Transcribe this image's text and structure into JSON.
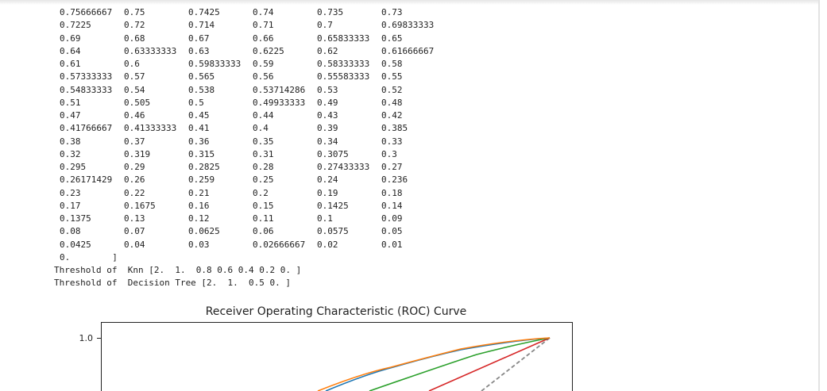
{
  "output": {
    "rows": [
      [
        "0.75666667",
        "0.75",
        "0.7425",
        "0.74",
        "0.735",
        "0.73"
      ],
      [
        "0.7225",
        "0.72",
        "0.714",
        "0.71",
        "0.7",
        "0.69833333"
      ],
      [
        "0.69",
        "0.68",
        "0.67",
        "0.66",
        "0.65833333",
        "0.65"
      ],
      [
        "0.64",
        "0.63333333",
        "0.63",
        "0.6225",
        "0.62",
        "0.61666667"
      ],
      [
        "0.61",
        "0.6",
        "0.59833333",
        "0.59",
        "0.58333333",
        "0.58"
      ],
      [
        "0.57333333",
        "0.57",
        "0.565",
        "0.56",
        "0.55583333",
        "0.55"
      ],
      [
        "0.54833333",
        "0.54",
        "0.538",
        "0.53714286",
        "0.53",
        "0.52"
      ],
      [
        "0.51",
        "0.505",
        "0.5",
        "0.49933333",
        "0.49",
        "0.48"
      ],
      [
        "0.47",
        "0.46",
        "0.45",
        "0.44",
        "0.43",
        "0.42"
      ],
      [
        "0.41766667",
        "0.41333333",
        "0.41",
        "0.4",
        "0.39",
        "0.385"
      ],
      [
        "0.38",
        "0.37",
        "0.36",
        "0.35",
        "0.34",
        "0.33"
      ],
      [
        "0.32",
        "0.319",
        "0.315",
        "0.31",
        "0.3075",
        "0.3"
      ],
      [
        "0.295",
        "0.29",
        "0.2825",
        "0.28",
        "0.27433333",
        "0.27"
      ],
      [
        "0.26171429",
        "0.26",
        "0.259",
        "0.25",
        "0.24",
        "0.236"
      ],
      [
        "0.23",
        "0.22",
        "0.21",
        "0.2",
        "0.19",
        "0.18"
      ],
      [
        "0.17",
        "0.1675",
        "0.16",
        "0.15",
        "0.1425",
        "0.14"
      ],
      [
        "0.1375",
        "0.13",
        "0.12",
        "0.11",
        "0.1",
        "0.09"
      ],
      [
        "0.08",
        "0.07",
        "0.0625",
        "0.06",
        "0.0575",
        "0.05"
      ],
      [
        "0.0425",
        "0.04",
        "0.03",
        "0.02666667",
        "0.02",
        "0.01"
      ]
    ],
    "final_line": "0.        ]",
    "thresholds": [
      "Threshold of  Knn [2.  1.  0.8 0.6 0.4 0.2 0. ]",
      "Threshold of  Decision Tree [2.  1.  0.5 0. ]"
    ]
  },
  "figure": {
    "title": "Receiver Operating Characteristic (ROC) Curve",
    "y_tick": "1.0"
  }
}
